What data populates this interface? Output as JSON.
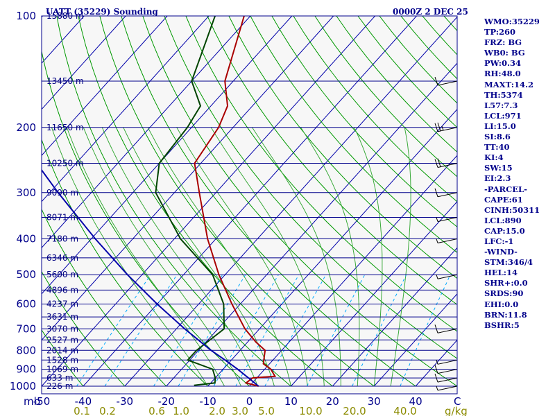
{
  "header": {
    "station": "UATT (35229) Sounding",
    "time": "0000Z  2 DEC 25"
  },
  "chart_data": {
    "type": "skew-t",
    "title": "UATT (35229) Sounding",
    "valid_time": "0000Z  2 DEC 25",
    "pressure_range_mb": [
      1000,
      100
    ],
    "pressure_axis_label": "mb",
    "pressure_ticks": [
      100,
      200,
      300,
      400,
      500,
      600,
      700,
      800,
      900,
      1000
    ],
    "temperature_range_c": [
      -50,
      50
    ],
    "temperature_unit_label": "C",
    "temperature_ticks": [
      -50,
      -40,
      -30,
      -20,
      -10,
      0,
      10,
      20,
      30,
      40
    ],
    "mixing_ratio_unit_label": "g/kg",
    "mixing_ratio_ticks": [
      "0.1",
      "0.2",
      "0.6",
      "1.0",
      "2.0",
      "3.0",
      "5.0",
      "10.0",
      "20.0",
      "40.0"
    ],
    "mixing_ratio_values": [
      0.1,
      0.2,
      0.6,
      1.0,
      2.0,
      3.0,
      5.0,
      10.0,
      20.0,
      40.0
    ],
    "height_levels": [
      {
        "p": 100,
        "label": "15880 m"
      },
      {
        "p": 150,
        "label": "13450 m"
      },
      {
        "p": 200,
        "label": "11650 m"
      },
      {
        "p": 250,
        "label": "10250 m"
      },
      {
        "p": 300,
        "label": "9090 m"
      },
      {
        "p": 350,
        "label": "8071 m"
      },
      {
        "p": 400,
        "label": "7180 m"
      },
      {
        "p": 450,
        "label": "6346 m"
      },
      {
        "p": 500,
        "label": "5600 m"
      },
      {
        "p": 550,
        "label": "4896 m"
      },
      {
        "p": 600,
        "label": "4237 m"
      },
      {
        "p": 650,
        "label": "3631 m"
      },
      {
        "p": 700,
        "label": "3070 m"
      },
      {
        "p": 750,
        "label": "2527 m"
      },
      {
        "p": 800,
        "label": "2014 m"
      },
      {
        "p": 850,
        "label": "1528 m"
      },
      {
        "p": 900,
        "label": "1069 m"
      },
      {
        "p": 950,
        "label": "633 m"
      },
      {
        "p": 1000,
        "label": "226 m"
      }
    ],
    "series": [
      {
        "name": "temperature",
        "color": "#aa0000",
        "points": [
          {
            "p": 1000,
            "t": 2.2
          },
          {
            "p": 980,
            "t": -1.5
          },
          {
            "p": 950,
            "t": -1.0
          },
          {
            "p": 940,
            "t": 4.0
          },
          {
            "p": 900,
            "t": 1.5
          },
          {
            "p": 870,
            "t": -1.5
          },
          {
            "p": 800,
            "t": -4.0
          },
          {
            "p": 760,
            "t": -8.0
          },
          {
            "p": 700,
            "t": -13.5
          },
          {
            "p": 600,
            "t": -22.0
          },
          {
            "p": 500,
            "t": -31.5
          },
          {
            "p": 400,
            "t": -42.0
          },
          {
            "p": 300,
            "t": -54.0
          },
          {
            "p": 250,
            "t": -61.5
          },
          {
            "p": 200,
            "t": -63.5
          },
          {
            "p": 175,
            "t": -66.0
          },
          {
            "p": 150,
            "t": -72.0
          },
          {
            "p": 100,
            "t": -81.5
          }
        ]
      },
      {
        "name": "dewpoint",
        "color": "#004400",
        "points": [
          {
            "p": 995,
            "t": -13.5
          },
          {
            "p": 980,
            "t": -9.0
          },
          {
            "p": 950,
            "t": -10.0
          },
          {
            "p": 900,
            "t": -12.5
          },
          {
            "p": 850,
            "t": -20.5
          },
          {
            "p": 800,
            "t": -20.5
          },
          {
            "p": 700,
            "t": -18.5
          },
          {
            "p": 600,
            "t": -24.0
          },
          {
            "p": 500,
            "t": -33.0
          },
          {
            "p": 400,
            "t": -48.5
          },
          {
            "p": 300,
            "t": -64.5
          },
          {
            "p": 250,
            "t": -70.0
          },
          {
            "p": 200,
            "t": -71.0
          },
          {
            "p": 175,
            "t": -72.5
          },
          {
            "p": 150,
            "t": -80.0
          },
          {
            "p": 100,
            "t": -88.5
          }
        ]
      },
      {
        "name": "parcel",
        "color": "#0000aa",
        "points": [
          {
            "p": 1000,
            "t": 2.2
          },
          {
            "p": 950,
            "t": -2.0
          },
          {
            "p": 900,
            "t": -6.5
          },
          {
            "p": 850,
            "t": -11.5
          },
          {
            "p": 800,
            "t": -17.0
          },
          {
            "p": 700,
            "t": -28.0
          },
          {
            "p": 600,
            "t": -40.0
          },
          {
            "p": 500,
            "t": -53.5
          },
          {
            "p": 400,
            "t": -69.0
          },
          {
            "p": 300,
            "t": -88.0
          },
          {
            "p": 250,
            "t": -99.5
          },
          {
            "p": 200,
            "t": -113.0
          },
          {
            "p": 150,
            "t": -129.0
          },
          {
            "p": 100,
            "t": -151.0
          }
        ]
      }
    ],
    "wind_barbs": [
      {
        "p": 1000,
        "speed": 5
      },
      {
        "p": 950,
        "speed": 10
      },
      {
        "p": 900,
        "speed": 10
      },
      {
        "p": 850,
        "speed": 5
      },
      {
        "p": 700,
        "speed": 10
      },
      {
        "p": 500,
        "speed": 5
      },
      {
        "p": 400,
        "speed": 5
      },
      {
        "p": 350,
        "speed": 5
      },
      {
        "p": 300,
        "speed": 10
      },
      {
        "p": 250,
        "speed": 20
      },
      {
        "p": 200,
        "speed": 25
      },
      {
        "p": 150,
        "speed": 10
      }
    ]
  },
  "indices": [
    "WMO:35229",
    "TP:260",
    "FRZ: BG",
    "WB0: BG",
    "PW:0.34",
    "RH:48.0",
    "MAXT:14.2",
    "TH:5374",
    "L57:7.3",
    "LCL:971",
    "LI:15.0",
    "SI:8.6",
    "TT:40",
    "KI:4",
    "SW:15",
    "EI:2.3",
    "-PARCEL-",
    "CAPE:61",
    "CINH:50311",
    "LCL:890",
    "CAP:15.0",
    "LFC:-1",
    "-WIND-",
    "STM:346/4",
    "HEL:14",
    "SHR+:0.0",
    "SRDS:90",
    "EHI:0.0",
    "BRN:11.8",
    "BSHR:5"
  ],
  "colors": {
    "temperature": "#aa0000",
    "dewpoint": "#004400",
    "parcel": "#0000aa",
    "isobar": "#00008b",
    "isotherm": "#0000aa",
    "dry_adiabat": "#009900",
    "moist_adiabat": "#3aaa3a",
    "mixing_ratio": "#00aaff",
    "label": "#00008b",
    "mixing_label": "#8b8b00",
    "background": "#f7f7f7"
  }
}
